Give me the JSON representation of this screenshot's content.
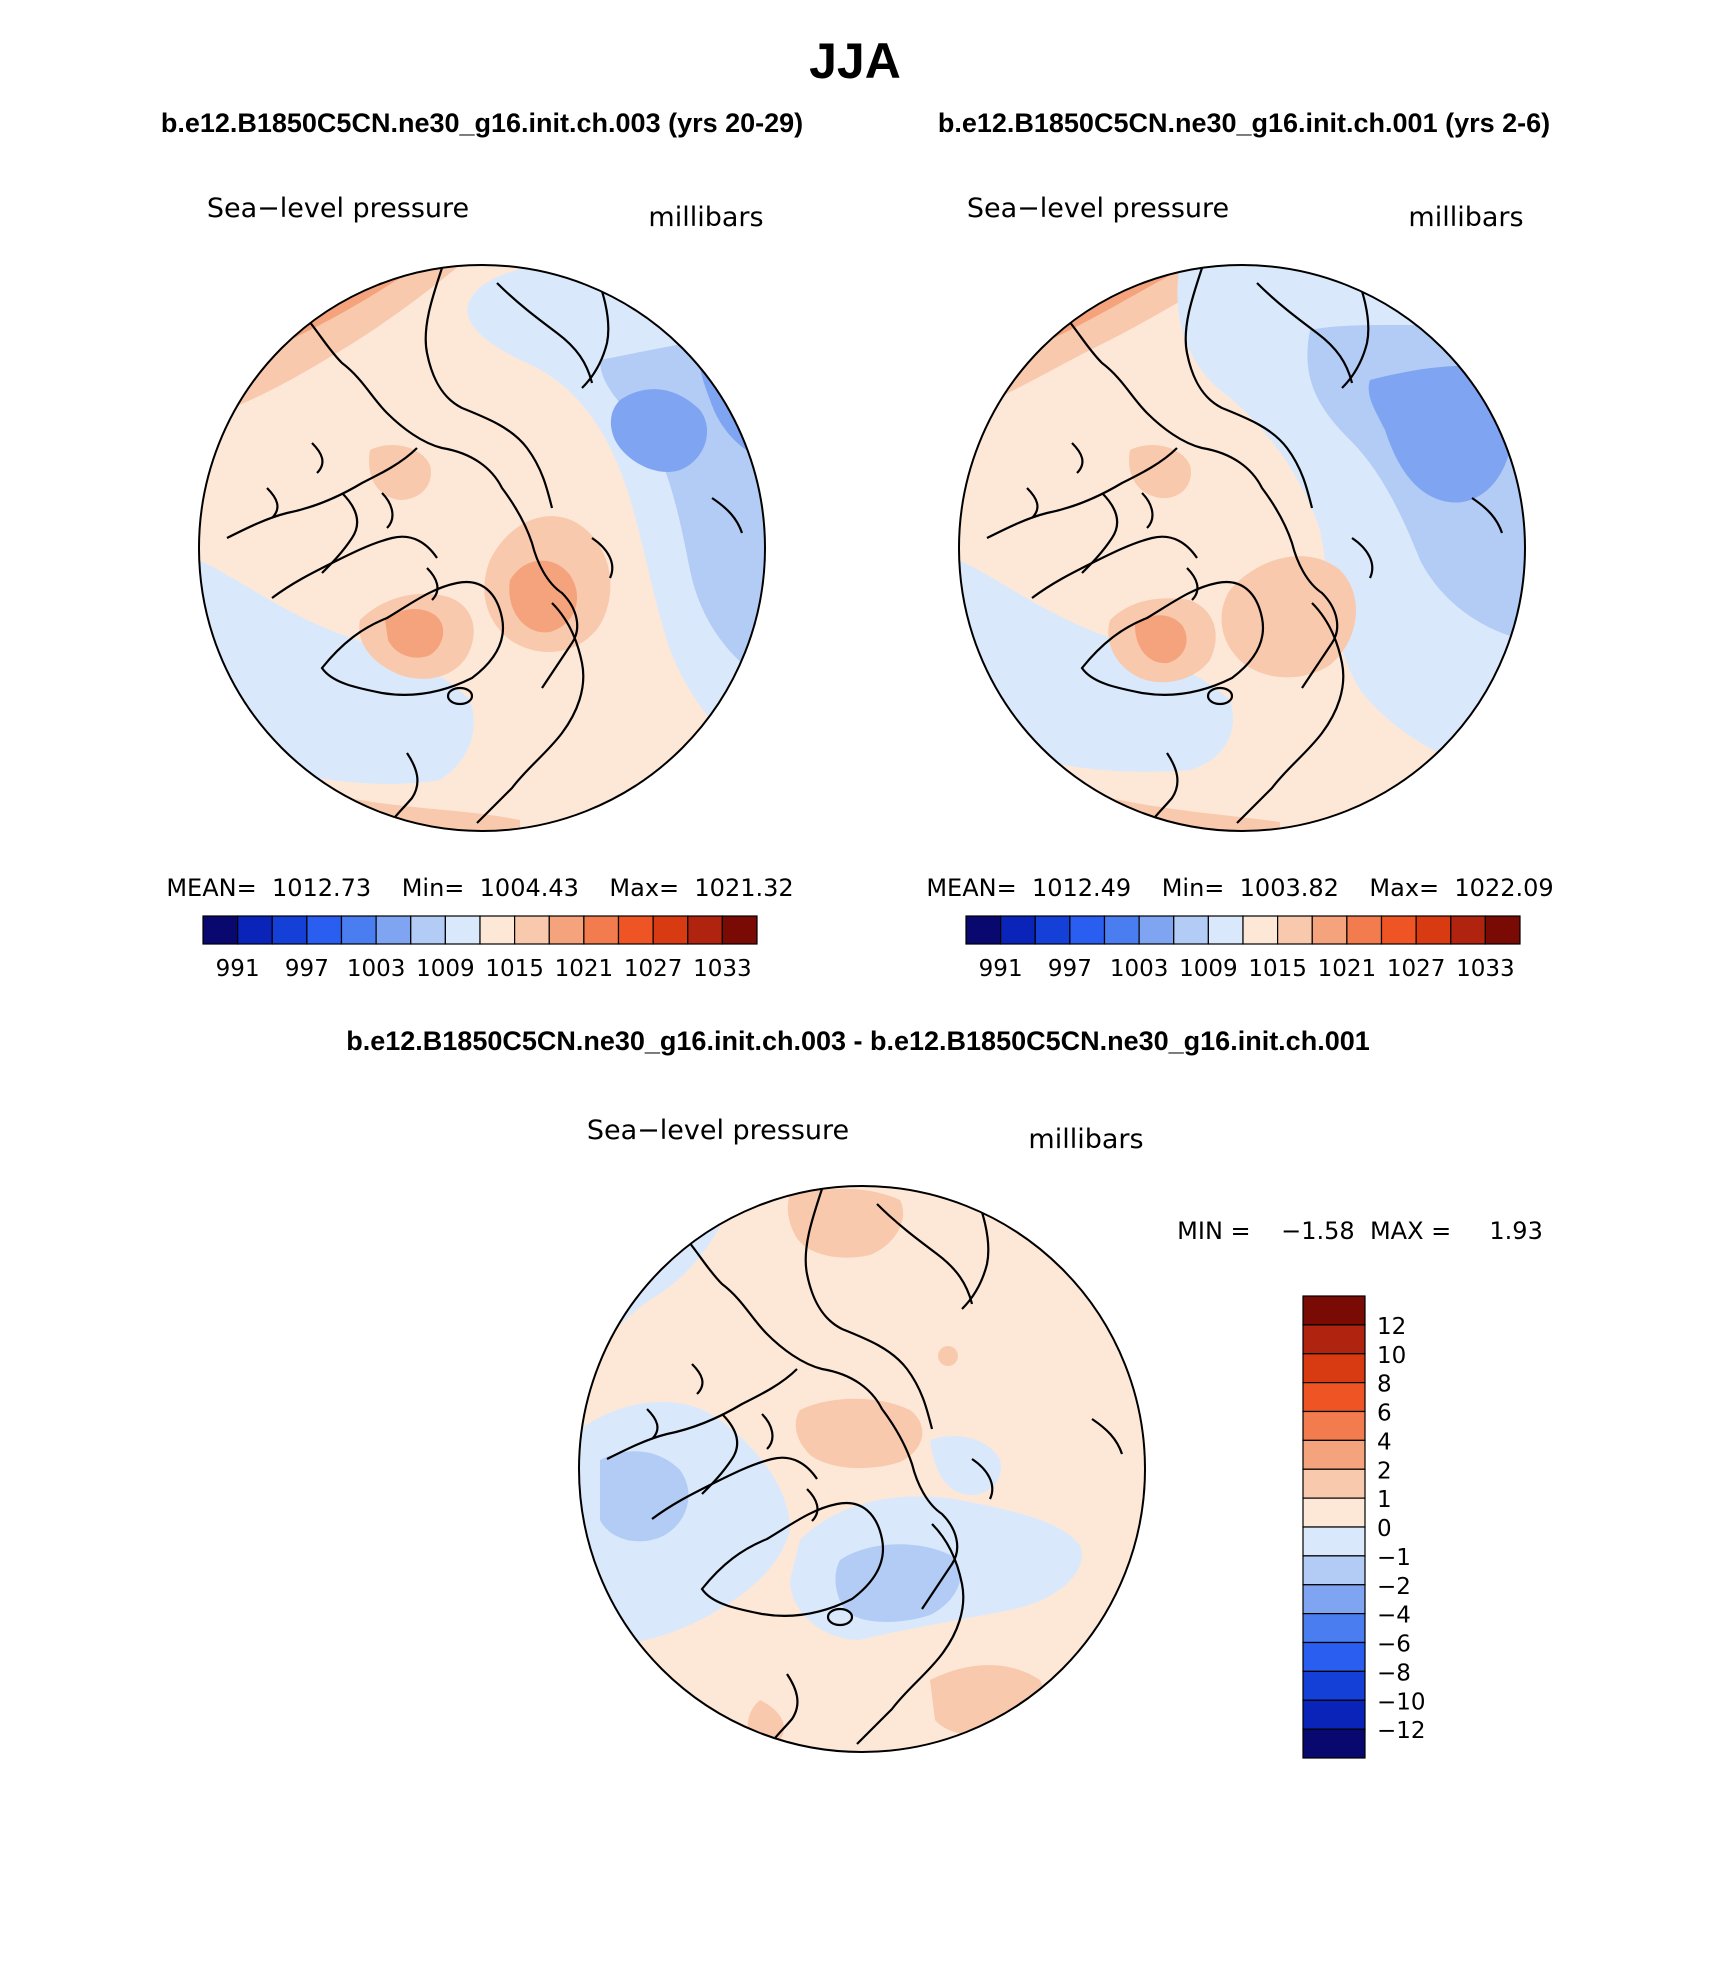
{
  "figure": {
    "season_title": "JJA",
    "top_left_title": "b.e12.B1850C5CN.ne30_g16.init.ch.003 (yrs 20-29)",
    "top_right_title": "b.e12.B1850C5CN.ne30_g16.init.ch.001 (yrs 2-6)",
    "diff_title": "b.e12.B1850C5CN.ne30_g16.init.ch.003 - b.e12.B1850C5CN.ne30_g16.init.ch.001"
  },
  "panels": [
    {
      "id": "case-003",
      "variable": "Sea−level pressure",
      "units": "millibars",
      "stats": "MEAN=  1012.73    Min=  1004.43    Max=  1021.32"
    },
    {
      "id": "case-001",
      "variable": "Sea−level pressure",
      "units": "millibars",
      "stats": "MEAN=  1012.49    Min=  1003.82    Max=  1022.09"
    },
    {
      "id": "difference",
      "variable": "Sea−level pressure",
      "units": "millibars",
      "stats": "MIN =    −1.58  MAX =     1.93"
    }
  ],
  "colorbar_abs": {
    "colors": [
      "#08086e",
      "#0a23b8",
      "#1540d8",
      "#2a5ef0",
      "#4a7ef0",
      "#7fa4f2",
      "#b2ccf5",
      "#d9e9fb",
      "#fde8d8",
      "#f9c9ad",
      "#f5a37d",
      "#f27c4e",
      "#ee5424",
      "#d83a12",
      "#b0230e",
      "#7a0a04"
    ],
    "labels": [
      "991",
      "997",
      "1003",
      "1009",
      "1015",
      "1021",
      "1027",
      "1033"
    ]
  },
  "colorbar_diff": {
    "colors": [
      "#7a0a04",
      "#b0230e",
      "#d83a12",
      "#ee5424",
      "#f27c4e",
      "#f5a37d",
      "#f9c9ad",
      "#fde8d8",
      "#d9e9fb",
      "#b2ccf5",
      "#7fa4f2",
      "#4a7ef0",
      "#2a5ef0",
      "#1540d8",
      "#0a23b8",
      "#08086e"
    ],
    "labels": [
      "12",
      "10",
      "8",
      "6",
      "4",
      "2",
      "1",
      "0",
      "−1",
      "−2",
      "−4",
      "−6",
      "−8",
      "−10",
      "−12"
    ]
  }
}
